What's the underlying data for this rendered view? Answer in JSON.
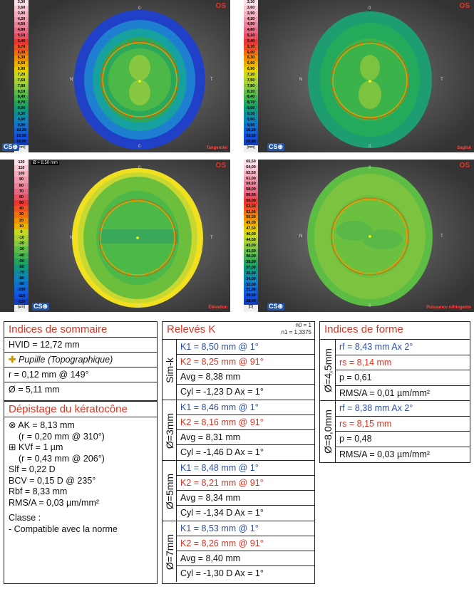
{
  "maps": [
    {
      "eye": "OS",
      "type": "Tangentiel",
      "scale_unit": "[mm]",
      "scale": [
        "3,30",
        "3,60",
        "3,90",
        "4,20",
        "4,50",
        "4,80",
        "5,10",
        "5,40",
        "5,70",
        "6,00",
        "6,30",
        "6,60",
        "6,90",
        "7,20",
        "7,50",
        "7,80",
        "8,10",
        "8,40",
        "8,70",
        "9,00",
        "9,30",
        "9,60",
        "9,90",
        "10,20",
        "10,50",
        "10,80"
      ]
    },
    {
      "eye": "OS",
      "type": "Sagital",
      "scale_unit": "[mm]",
      "scale": [
        "3,30",
        "3,60",
        "3,90",
        "4,20",
        "4,50",
        "4,80",
        "5,10",
        "5,40",
        "5,70",
        "6,00",
        "6,30",
        "6,60",
        "6,90",
        "7,20",
        "7,50",
        "7,80",
        "8,10",
        "8,40",
        "8,70",
        "9,00",
        "9,30",
        "9,60",
        "9,90",
        "10,20",
        "10,50",
        "10,80"
      ]
    },
    {
      "eye": "OS",
      "type": "Élévation",
      "diameter": "Ø = 8,50 mm",
      "scale_unit": "[µm]",
      "scale": [
        "120",
        "110",
        "100",
        "90",
        "80",
        "70",
        "60",
        "50",
        "40",
        "30",
        "20",
        "10",
        "0",
        "-10",
        "-20",
        "-30",
        "-40",
        "-50",
        "-60",
        "-70",
        "-80",
        "-90",
        "-100",
        "-110",
        "-120"
      ]
    },
    {
      "eye": "OS",
      "type": "Puissance réfringente",
      "scale_unit": "[D]",
      "scale": [
        "65,50",
        "64,00",
        "62,50",
        "61,00",
        "59,50",
        "58,00",
        "56,50",
        "55,00",
        "53,50",
        "52,00",
        "50,50",
        "49,00",
        "47,50",
        "46,00",
        "44,50",
        "43,00",
        "41,50",
        "40,00",
        "38,50",
        "37,00",
        "35,50",
        "34,00",
        "32,50",
        "31,00",
        "29,50",
        "28,00"
      ]
    }
  ],
  "cso": "CS⊛",
  "orient": {
    "top": "0",
    "bottom": "0",
    "left": "N",
    "right": "T"
  },
  "sommaire": {
    "title": "Indices de sommaire",
    "hvid": "HVID = 12,72 mm",
    "pupille": "Pupille (Topographique)",
    "r": "r = 0,12 mm @ 149°",
    "diam": "Ø = 5,11 mm"
  },
  "depistage": {
    "title": "Dépistage du kératocône",
    "ak": "AK = 8,13 mm",
    "ak_sub": "(r = 0,20 mm @ 310°)",
    "kvf": "KVf = 1 µm",
    "kvf_sub": "(r = 0,43 mm @ 206°)",
    "slf": "Slf = 0,22 D",
    "bcv": "BCV = 0,15 D @ 235°",
    "rbf": "Rbf = 8,33 mm",
    "rms": "RMS/A = 0,03 µm/mm²",
    "classe": "Classe :",
    "classe_val": "- Compatible avec la norme"
  },
  "releves": {
    "title": "Relevés K",
    "n0": "n0 = 1",
    "n1": "n1 = 1,3375",
    "groups": [
      {
        "label": "Sim-k",
        "k1": "K1 = 8,50 mm  @ 1°",
        "k2": "K2 = 8,25 mm  @ 91°",
        "avg": "Avg = 8,38 mm",
        "cyl": "Cyl = -1,23 D Ax = 1°"
      },
      {
        "label": "Ø=3mm",
        "k1": "K1 = 8,46 mm  @ 1°",
        "k2": "K2 = 8,16 mm  @ 91°",
        "avg": "Avg = 8,31 mm",
        "cyl": "Cyl = -1,46 D Ax = 1°"
      },
      {
        "label": "Ø=5mm",
        "k1": "K1 = 8,48 mm  @ 1°",
        "k2": "K2 = 8,21 mm  @ 91°",
        "avg": "Avg = 8,34 mm",
        "cyl": "Cyl = -1,34 D Ax = 1°"
      },
      {
        "label": "Ø=7mm",
        "k1": "K1 = 8,53 mm  @ 1°",
        "k2": "K2 = 8,26 mm  @ 91°",
        "avg": "Avg = 8,40 mm",
        "cyl": "Cyl = -1,30 D Ax = 1°"
      }
    ]
  },
  "forme": {
    "title": "Indices de forme",
    "groups": [
      {
        "label": "Ø=4,5mm",
        "rf": "rf = 8,43 mm Ax 2°",
        "rs": "rs = 8,14 mm",
        "p": "p = 0,61",
        "rms": "RMS/A = 0,01 µm/mm²"
      },
      {
        "label": "Ø=8,0mm",
        "rf": "rf = 8,38 mm Ax 2°",
        "rs": "rs = 8,15 mm",
        "p": "p = 0,48",
        "rms": "RMS/A = 0,03 µm/mm²"
      }
    ]
  },
  "colors": {
    "red": "#d32",
    "blue": "#2c50a8"
  }
}
